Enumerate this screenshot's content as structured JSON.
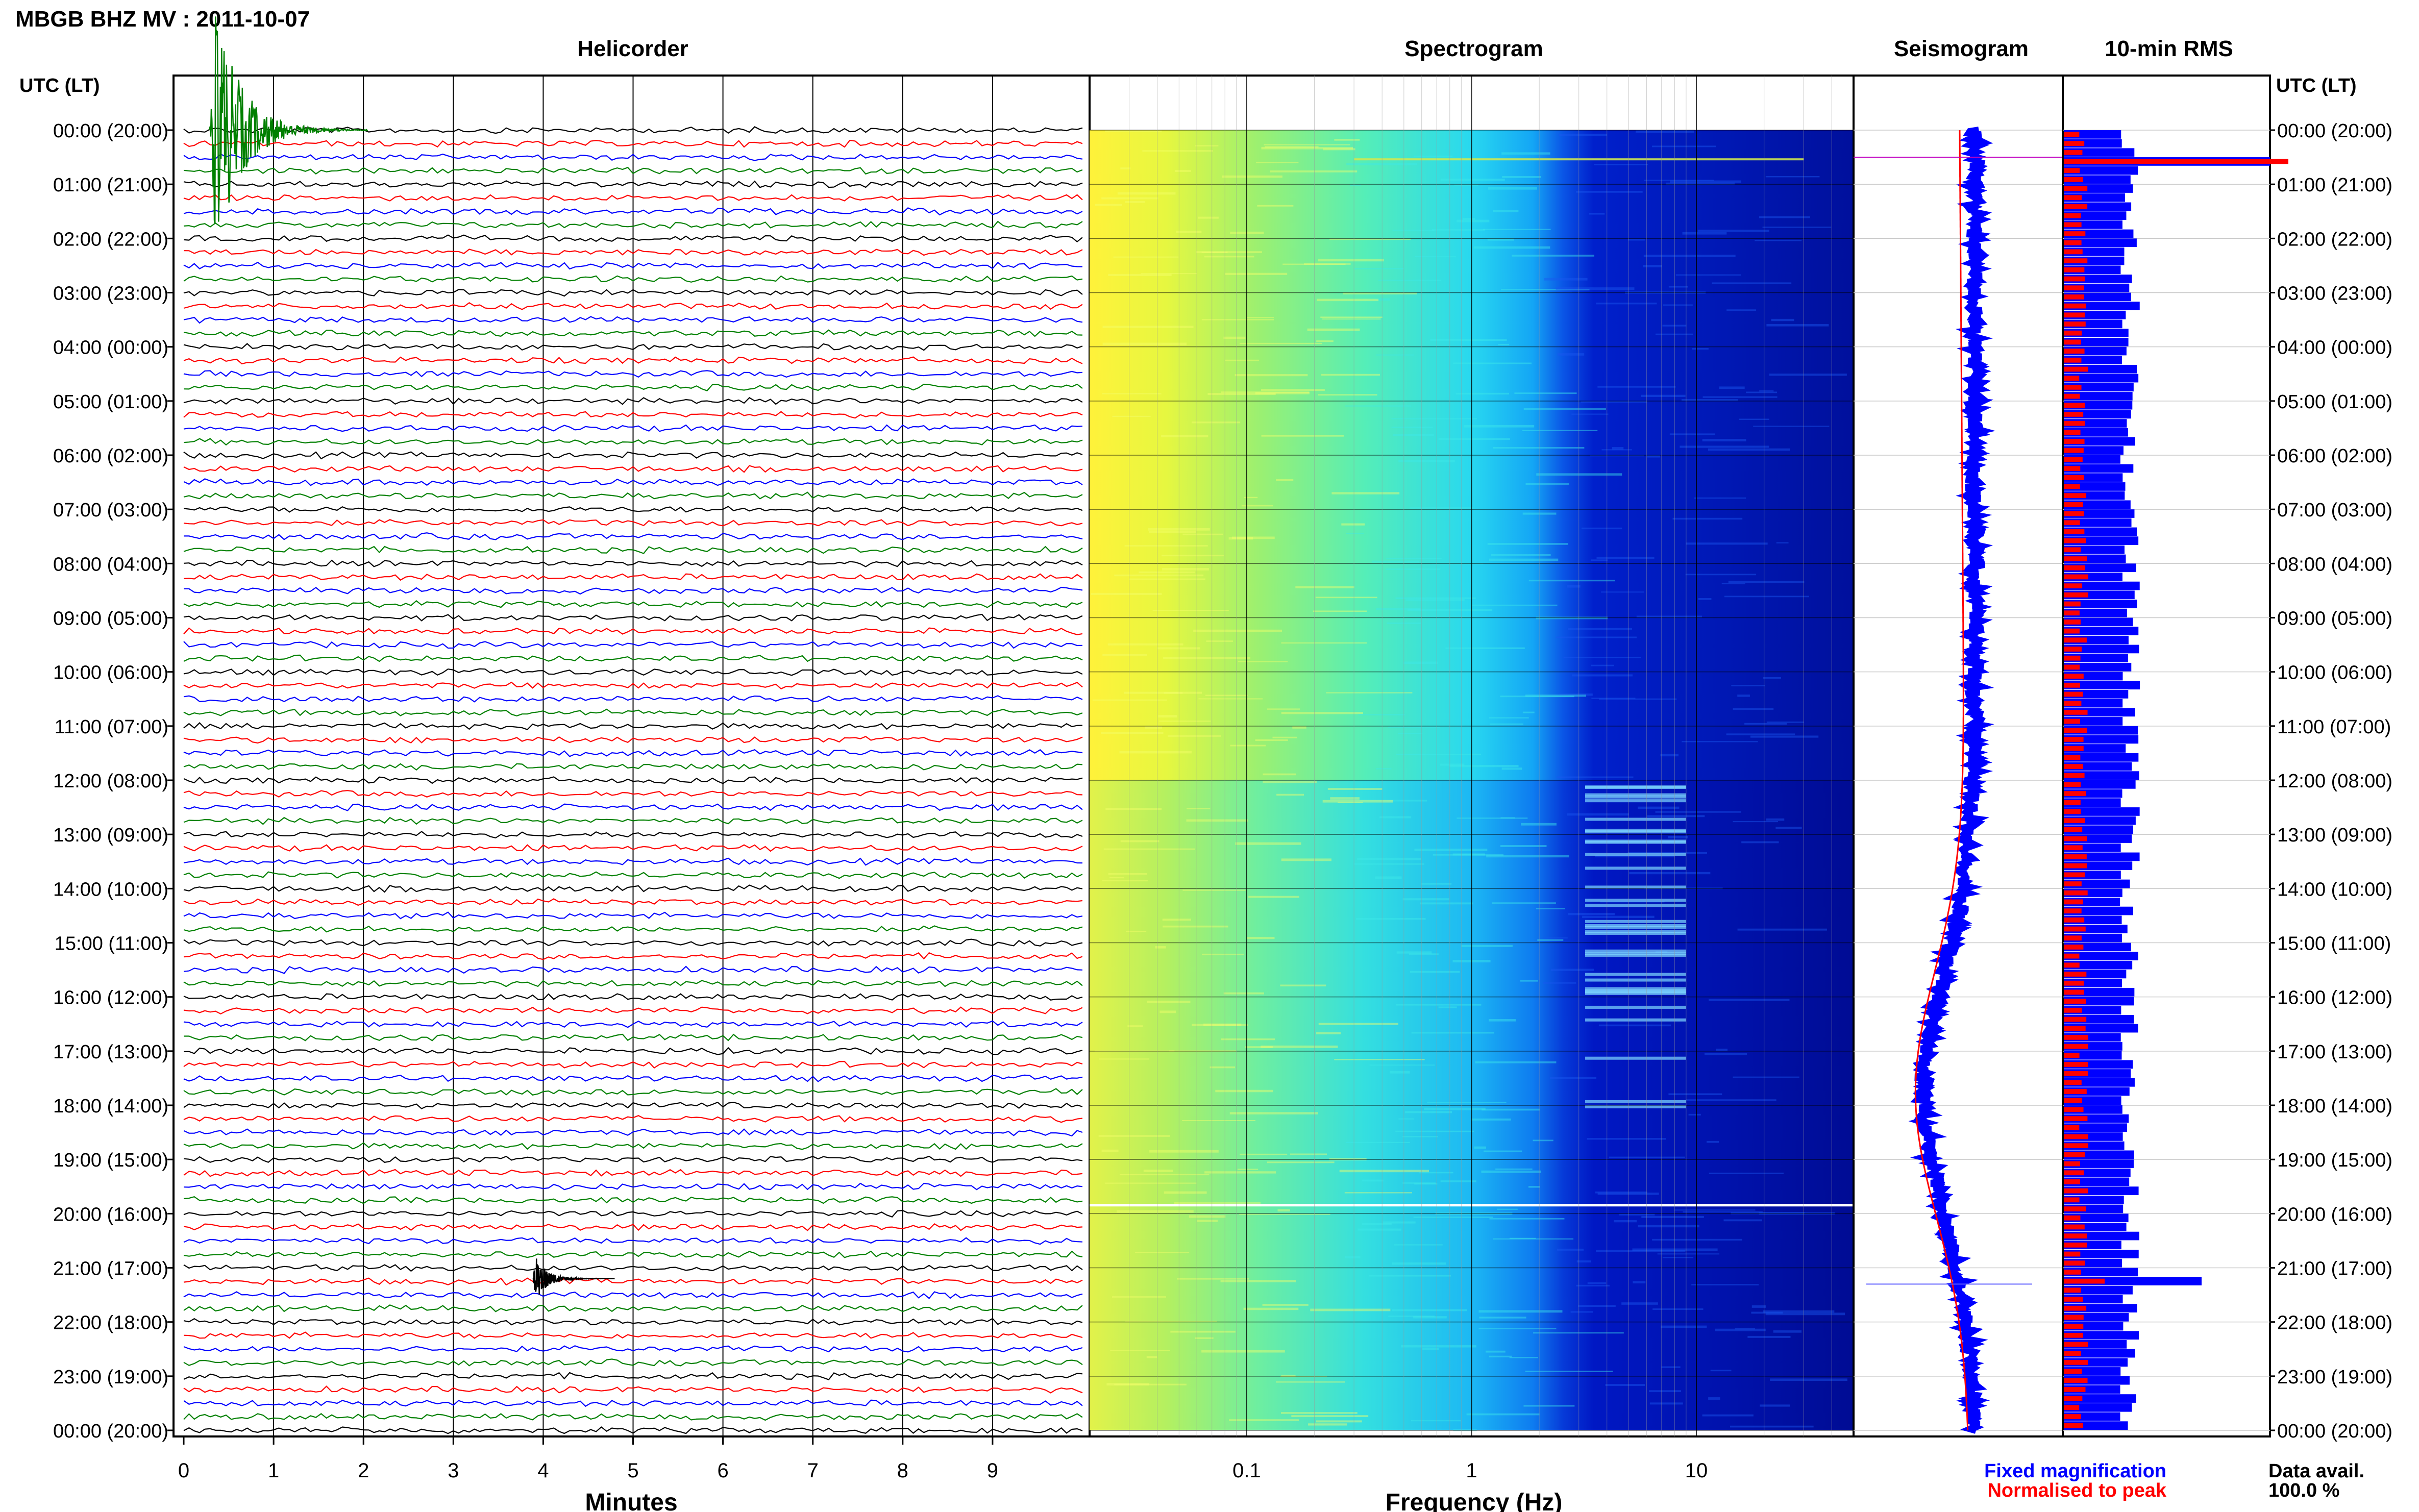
{
  "title": "MBGB BHZ MV : 2011-10-07",
  "panels": {
    "helicorder": "Helicorder",
    "spectrogram": "Spectrogram",
    "seismogram": "Seismogram",
    "rms": "10-min RMS"
  },
  "axis_header_left": "UTC (LT)",
  "axis_header_right": "UTC (LT)",
  "time_labels": [
    "00:00 (20:00)",
    "01:00 (21:00)",
    "02:00 (22:00)",
    "03:00 (23:00)",
    "04:00 (00:00)",
    "05:00 (01:00)",
    "06:00 (02:00)",
    "07:00 (03:00)",
    "08:00 (04:00)",
    "09:00 (05:00)",
    "10:00 (06:00)",
    "11:00 (07:00)",
    "12:00 (08:00)",
    "13:00 (09:00)",
    "14:00 (10:00)",
    "15:00 (11:00)",
    "16:00 (12:00)",
    "17:00 (13:00)",
    "18:00 (14:00)",
    "19:00 (15:00)",
    "20:00 (16:00)",
    "21:00 (17:00)",
    "22:00 (18:00)",
    "23:00 (19:00)",
    "00:00 (20:00)"
  ],
  "legend": {
    "fixed": "Fixed magnification",
    "normalised": "Normalised to peak",
    "fixed_color": "#0000ff",
    "normalised_color": "#ff0000"
  },
  "data_avail": {
    "label": "Data avail.",
    "value": "100.0 %"
  },
  "chart_data": [
    {
      "type": "line",
      "title": "Helicorder",
      "xlabel": "Minutes",
      "ylabel": "UTC (LT)",
      "x_ticks": [
        "0",
        "1",
        "2",
        "3",
        "4",
        "5",
        "6",
        "7",
        "8",
        "9"
      ],
      "xlim": [
        0,
        10
      ],
      "line_colors": [
        "#000000",
        "#ff0000",
        "#0000ff",
        "#008000"
      ],
      "events": [
        {
          "hour": 0.0,
          "minute": 0.4,
          "color": "#008000",
          "note": "large event"
        },
        {
          "hour": 21.2,
          "minute": 4.0,
          "color": "#000000",
          "note": "event"
        }
      ]
    },
    {
      "type": "heatmap",
      "title": "Spectrogram",
      "xlabel": "Frequency (Hz)",
      "x_scale": "log",
      "xlim": [
        0.02,
        50
      ],
      "x_ticks": [
        "0.1",
        "1",
        "10"
      ],
      "colormap": [
        "#ffff40",
        "#80ff80",
        "#20ffff",
        "#0080ff",
        "#0000c0"
      ]
    },
    {
      "type": "line",
      "title": "Seismogram",
      "series": [
        {
          "name": "Fixed magnification",
          "color": "#0000ff"
        },
        {
          "name": "Normalised to peak",
          "color": "#ff0000"
        }
      ]
    },
    {
      "type": "bar",
      "title": "10-min RMS",
      "colors": [
        "#0000ff",
        "#ff0000"
      ]
    }
  ]
}
